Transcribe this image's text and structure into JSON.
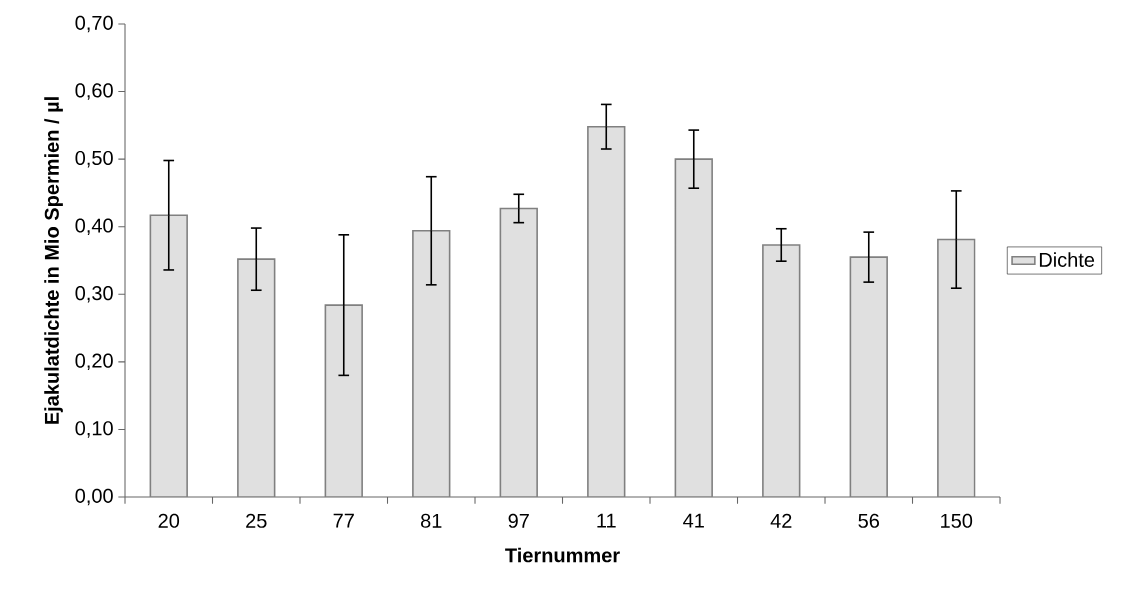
{
  "chart_data": {
    "type": "bar",
    "xlabel": "Tiernummer",
    "ylabel": "Ejakulatdichte in Mio Spermien / µl",
    "categories": [
      "20",
      "25",
      "77",
      "81",
      "97",
      "11",
      "41",
      "42",
      "56",
      "150"
    ],
    "series": [
      {
        "name": "Dichte",
        "color": "#e0e0e0",
        "values": [
          0.417,
          0.352,
          0.284,
          0.394,
          0.427,
          0.548,
          0.5,
          0.373,
          0.355,
          0.381
        ],
        "errors": [
          0.081,
          0.046,
          0.104,
          0.08,
          0.021,
          0.033,
          0.043,
          0.024,
          0.037,
          0.072
        ]
      }
    ],
    "ylim": [
      0,
      0.7
    ],
    "yticks": [
      {
        "value": 0,
        "label": "0,00"
      },
      {
        "value": 0.1,
        "label": "0,10"
      },
      {
        "value": 0.2,
        "label": "0,20"
      },
      {
        "value": 0.3,
        "label": "0,30"
      },
      {
        "value": 0.4,
        "label": "0,40"
      },
      {
        "value": 0.5,
        "label": "0,50"
      },
      {
        "value": 0.6,
        "label": "0,60"
      },
      {
        "value": 0.7,
        "label": "0,70"
      }
    ],
    "legend": "right"
  }
}
